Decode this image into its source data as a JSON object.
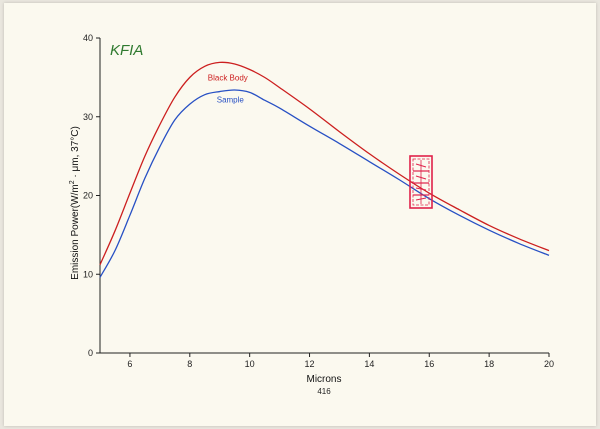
{
  "brand_label": "KFIA",
  "page_number": "416",
  "stamp_color": "#e0224a",
  "colors": {
    "black_body": "#cc1f1f",
    "sample": "#2750c4",
    "brand": "#2f7a2f"
  },
  "chart_data": {
    "type": "line",
    "title": "",
    "xlabel": "Microns",
    "ylabel": "Emission Power(W/m² ·μm, 37°C)",
    "ylabel_parts": {
      "main": "Emission Power(W/m",
      "sup": "2",
      "rest": " · μm, 37°C)"
    },
    "xlim": [
      5,
      20
    ],
    "ylim": [
      0,
      40
    ],
    "xticks": [
      6,
      8,
      10,
      12,
      14,
      16,
      18,
      20
    ],
    "yticks": [
      0,
      10,
      20,
      30,
      40
    ],
    "grid": false,
    "legend": "inline labels",
    "series": [
      {
        "name": "Black Body",
        "x": [
          5.0,
          5.5,
          6.0,
          6.5,
          7.0,
          7.5,
          8.0,
          8.5,
          9.0,
          9.5,
          10.0,
          10.5,
          11.0,
          12.0,
          13.0,
          14.0,
          15.0,
          16.0,
          17.0,
          18.0,
          19.0,
          20.0
        ],
        "y": [
          11.2,
          15.5,
          20.3,
          25.0,
          29.0,
          32.5,
          35.0,
          36.4,
          36.9,
          36.7,
          36.0,
          35.0,
          33.7,
          31.0,
          28.1,
          25.3,
          22.7,
          20.3,
          18.2,
          16.2,
          14.5,
          13.0
        ]
      },
      {
        "name": "Sample",
        "x": [
          5.0,
          5.5,
          6.0,
          6.5,
          7.0,
          7.5,
          8.0,
          8.5,
          9.0,
          9.5,
          10.0,
          10.5,
          11.0,
          12.0,
          13.0,
          14.0,
          15.0,
          16.0,
          17.0,
          18.0,
          19.0,
          20.0
        ],
        "y": [
          9.6,
          13.0,
          17.5,
          22.2,
          26.2,
          29.6,
          31.6,
          32.8,
          33.2,
          33.4,
          33.1,
          32.1,
          31.1,
          28.8,
          26.6,
          24.3,
          22.0,
          19.6,
          17.5,
          15.6,
          13.9,
          12.4
        ]
      }
    ]
  }
}
